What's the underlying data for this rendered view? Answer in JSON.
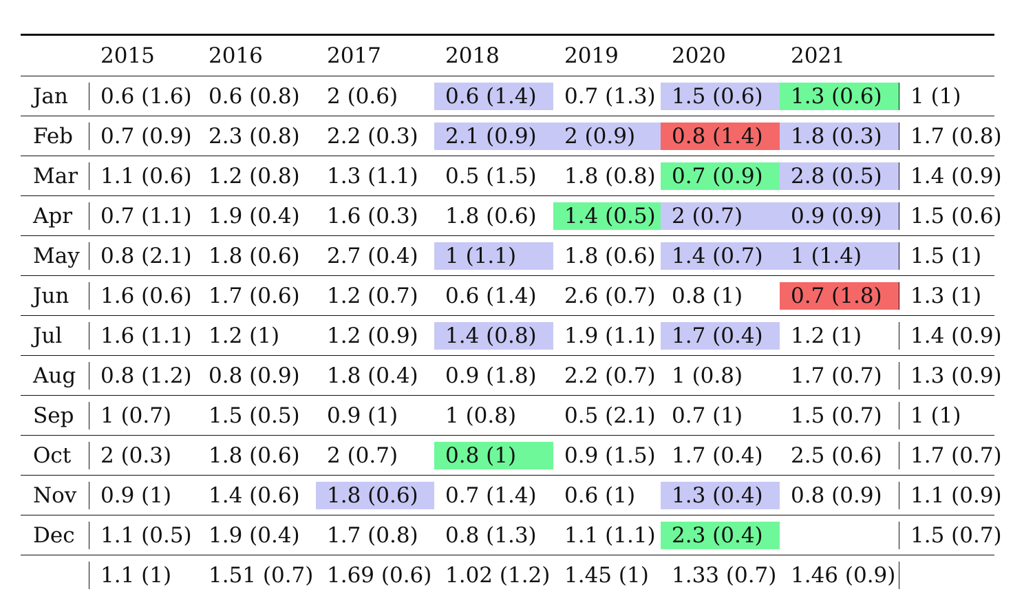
{
  "table": {
    "headers": [
      "",
      "2015",
      "2016",
      "2017",
      "2018",
      "2019",
      "2020",
      "2021",
      ""
    ],
    "rows": [
      {
        "month": "Jan",
        "cells": [
          "0.6 (1.6)",
          "0.6 (0.8)",
          "2 (0.6)",
          "0.6 (1.4)",
          "0.7 (1.3)",
          "1.5 (0.6)",
          "1.3 (0.6)",
          "1 (1)"
        ],
        "hl": [
          "",
          "",
          "",
          "blue",
          "",
          "blue",
          "green",
          ""
        ]
      },
      {
        "month": "Feb",
        "cells": [
          "0.7 (0.9)",
          "2.3 (0.8)",
          "2.2 (0.3)",
          "2.1 (0.9)",
          "2 (0.9)",
          "0.8 (1.4)",
          "1.8 (0.3)",
          "1.7 (0.8)"
        ],
        "hl": [
          "",
          "",
          "",
          "blue",
          "blue",
          "red",
          "blue",
          ""
        ]
      },
      {
        "month": "Mar",
        "cells": [
          "1.1 (0.6)",
          "1.2 (0.8)",
          "1.3 (1.1)",
          "0.5 (1.5)",
          "1.8 (0.8)",
          "0.7 (0.9)",
          "2.8 (0.5)",
          "1.4 (0.9)"
        ],
        "hl": [
          "",
          "",
          "",
          "",
          "",
          "green",
          "blue",
          ""
        ]
      },
      {
        "month": "Apr",
        "cells": [
          "0.7 (1.1)",
          "1.9 (0.4)",
          "1.6 (0.3)",
          "1.8 (0.6)",
          "1.4 (0.5)",
          "2 (0.7)",
          "0.9 (0.9)",
          "1.5 (0.6)"
        ],
        "hl": [
          "",
          "",
          "",
          "",
          "green",
          "blue",
          "blue",
          ""
        ]
      },
      {
        "month": "May",
        "cells": [
          "0.8 (2.1)",
          "1.8 (0.6)",
          "2.7 (0.4)",
          "1 (1.1)",
          "1.8 (0.6)",
          "1.4 (0.7)",
          "1 (1.4)",
          "1.5 (1)"
        ],
        "hl": [
          "",
          "",
          "",
          "blue",
          "",
          "blue",
          "blue",
          ""
        ]
      },
      {
        "month": "Jun",
        "cells": [
          "1.6 (0.6)",
          "1.7 (0.6)",
          "1.2 (0.7)",
          "0.6 (1.4)",
          "2.6 (0.7)",
          "0.8 (1)",
          "0.7 (1.8)",
          "1.3 (1)"
        ],
        "hl": [
          "",
          "",
          "",
          "",
          "",
          "",
          "red",
          ""
        ]
      },
      {
        "month": "Jul",
        "cells": [
          "1.6 (1.1)",
          "1.2 (1)",
          "1.2 (0.9)",
          "1.4 (0.8)",
          "1.9 (1.1)",
          "1.7 (0.4)",
          "1.2 (1)",
          "1.4 (0.9)"
        ],
        "hl": [
          "",
          "",
          "",
          "blue",
          "",
          "blue",
          "",
          ""
        ]
      },
      {
        "month": "Aug",
        "cells": [
          "0.8 (1.2)",
          "0.8 (0.9)",
          "1.8 (0.4)",
          "0.9 (1.8)",
          "2.2 (0.7)",
          "1 (0.8)",
          "1.7 (0.7)",
          "1.3 (0.9)"
        ],
        "hl": [
          "",
          "",
          "",
          "",
          "",
          "",
          "",
          ""
        ]
      },
      {
        "month": "Sep",
        "cells": [
          "1 (0.7)",
          "1.5 (0.5)",
          "0.9 (1)",
          "1 (0.8)",
          "0.5 (2.1)",
          "0.7 (1)",
          "1.5 (0.7)",
          "1 (1)"
        ],
        "hl": [
          "",
          "",
          "",
          "",
          "",
          "",
          "",
          ""
        ]
      },
      {
        "month": "Oct",
        "cells": [
          "2 (0.3)",
          "1.8 (0.6)",
          "2 (0.7)",
          "0.8 (1)",
          "0.9 (1.5)",
          "1.7 (0.4)",
          "2.5 (0.6)",
          "1.7 (0.7)"
        ],
        "hl": [
          "",
          "",
          "",
          "green",
          "",
          "",
          "",
          ""
        ]
      },
      {
        "month": "Nov",
        "cells": [
          "0.9 (1)",
          "1.4 (0.6)",
          "1.8 (0.6)",
          "0.7 (1.4)",
          "0.6 (1)",
          "1.3 (0.4)",
          "0.8 (0.9)",
          "1.1 (0.9)"
        ],
        "hl": [
          "",
          "",
          "blue",
          "",
          "",
          "blue",
          "",
          ""
        ]
      },
      {
        "month": "Dec",
        "cells": [
          "1.1 (0.5)",
          "1.9 (0.4)",
          "1.7 (0.8)",
          "0.8 (1.3)",
          "1.1 (1.1)",
          "2.3 (0.4)",
          "",
          "1.5 (0.7)"
        ],
        "hl": [
          "",
          "",
          "",
          "",
          "",
          "green",
          "",
          ""
        ]
      }
    ],
    "averages": [
      "1.1 (1)",
      "1.51 (0.7)",
      "1.69 (0.6)",
      "1.02 (1.2)",
      "1.45 (1)",
      "1.33 (0.7)",
      "1.46 (0.9)",
      ""
    ]
  },
  "colors": {
    "blue": "#c8c8f6",
    "green": "#6ef89a",
    "red": "#f56868",
    "rule": "#111111"
  }
}
